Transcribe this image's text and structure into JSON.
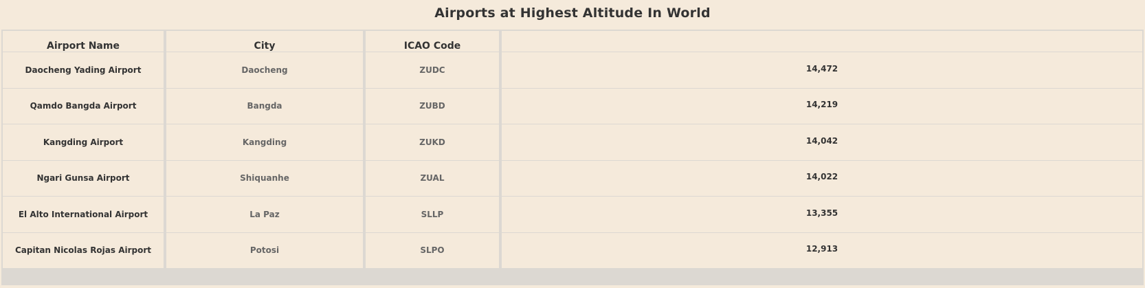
{
  "title": "Airports at Highest Altitude In World",
  "columns": [
    "Airport Name",
    "City",
    "ICAO Code",
    ""
  ],
  "chart_data": {
    "type": "table",
    "title": "Airports at Highest Altitude In World",
    "columns": [
      "Airport Name",
      "City",
      "ICAO Code",
      ""
    ],
    "rows": [
      {
        "airport": "Daocheng Yading Airport",
        "city": "Daocheng",
        "icao": "ZUDC",
        "altitude": "14,472"
      },
      {
        "airport": "Qamdo Bangda Airport",
        "city": "Bangda",
        "icao": "ZUBD",
        "altitude": "14,219"
      },
      {
        "airport": "Kangding Airport",
        "city": "Kangding",
        "icao": "ZUKD",
        "altitude": "14,042"
      },
      {
        "airport": "Ngari Gunsa Airport",
        "city": "Shiquanhe",
        "icao": "ZUAL",
        "altitude": "14,022"
      },
      {
        "airport": "El Alto International Airport",
        "city": "La Paz",
        "icao": "SLLP",
        "altitude": "13,355"
      },
      {
        "airport": "Capitan Nicolas Rojas Airport",
        "city": "Potosi",
        "icao": "SLPO",
        "altitude": "12,913"
      }
    ]
  }
}
